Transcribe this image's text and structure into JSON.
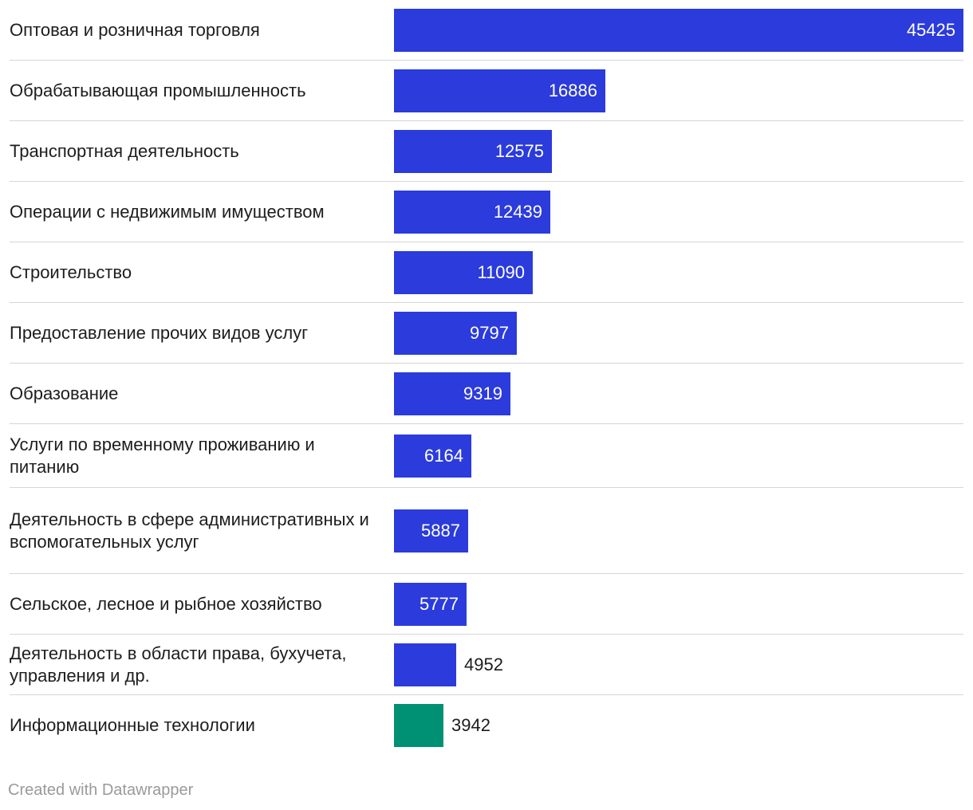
{
  "chart_data": {
    "type": "bar",
    "orientation": "horizontal",
    "categories": [
      "Оптовая и розничная торговля",
      "Обрабатывающая промышленность",
      "Транспортная деятельность",
      "Операции с недвижимым имуществом",
      "Строительство",
      "Предоставление прочих видов услуг",
      "Образование",
      "Услуги по временному проживанию и питанию",
      "Деятельность в сфере административных и вспомогательных услуг",
      "Сельское, лесное и рыбное хозяйство",
      "Деятельность в области права, бухучета, управления и др.",
      "Информационные технологии"
    ],
    "values": [
      45425,
      16886,
      12575,
      12439,
      11090,
      9797,
      9319,
      6164,
      5887,
      5777,
      4952,
      3942
    ],
    "value_labels": [
      "45425",
      "16886",
      "12575",
      "12439",
      "11090",
      "9797",
      "9319",
      "6164",
      "5887",
      "5777",
      "4952",
      "3942"
    ],
    "highlight_index": 11,
    "colors": {
      "default": "#2b3bdc",
      "highlight": "#009175"
    },
    "xlim": [
      0,
      45425
    ],
    "grid": false,
    "legend": "none"
  },
  "footer": {
    "credit": "Created with Datawrapper"
  }
}
